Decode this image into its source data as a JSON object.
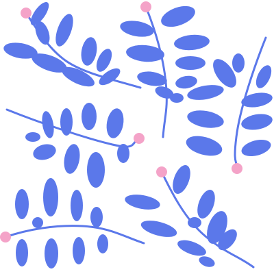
{
  "colors": {
    "background": "#ffffff",
    "leaf": "#5b78ea",
    "stem": "#5b78ea",
    "berry": "#f4a3c8"
  },
  "sprigs": [
    {
      "id": "top-left",
      "berry_position": "start",
      "leaf_pairs": 4
    },
    {
      "id": "top-center",
      "berry_position": "start",
      "leaf_pairs": 4
    },
    {
      "id": "right",
      "berry_position": "end",
      "leaf_pairs": 4
    },
    {
      "id": "middle-left",
      "berry_position": "end",
      "leaf_pairs": 4
    },
    {
      "id": "bottom-left",
      "berry_position": "start",
      "leaf_pairs": 4
    },
    {
      "id": "bottom-right",
      "berry_position": "start",
      "leaf_pairs": 4
    }
  ]
}
